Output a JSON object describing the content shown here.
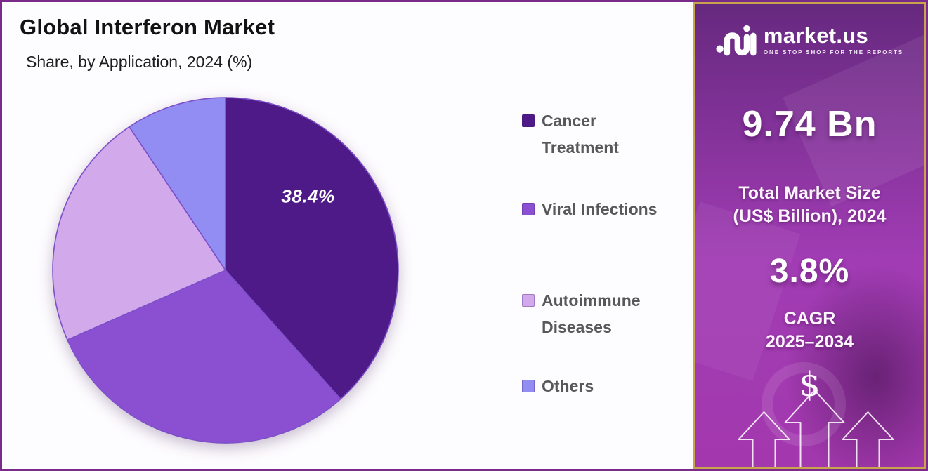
{
  "page": {
    "title": "Global Interferon Market",
    "subtitle": "Share, by Application, 2024 (%)"
  },
  "chart_data": {
    "type": "pie",
    "title": "Global Interferon Market",
    "subtitle": "Share, by Application, 2024 (%)",
    "categories": [
      "Cancer Treatment",
      "Viral Infections",
      "Autoimmune Diseases",
      "Others"
    ],
    "values": [
      38.4,
      30.0,
      22.2,
      9.4
    ],
    "unit": "%",
    "visible_data_label": "38.4%",
    "colors": [
      "#4d1a87",
      "#8b50d2",
      "#d2aaec",
      "#918df3"
    ],
    "slice_stroke": "#7d50c8",
    "start_angle_deg": 0,
    "direction": "clockwise",
    "legend_position": "right"
  },
  "legend": {
    "items": [
      "Cancer\nTreatment",
      "Viral Infections",
      "Autoimmune\nDiseases",
      "Others"
    ]
  },
  "sidebar": {
    "logo": {
      "brand": "market.us",
      "tagline": "ONE STOP SHOP FOR THE REPORTS"
    },
    "market_size": {
      "value": "9.74 Bn",
      "label_line1": "Total Market Size",
      "label_line2": "(US$ Billion), 2024"
    },
    "cagr": {
      "value": "3.8%",
      "label_line1": "CAGR",
      "label_line2": "2025–2034"
    },
    "dollar_symbol": "$",
    "colors": {
      "border": "#c9a44c",
      "gradient_top": "#66297f",
      "gradient_mid": "#a13cb4",
      "gradient_bottom": "#a338ae"
    }
  },
  "frame": {
    "border": "#7a2b8a",
    "background": "#fdfcfe"
  }
}
